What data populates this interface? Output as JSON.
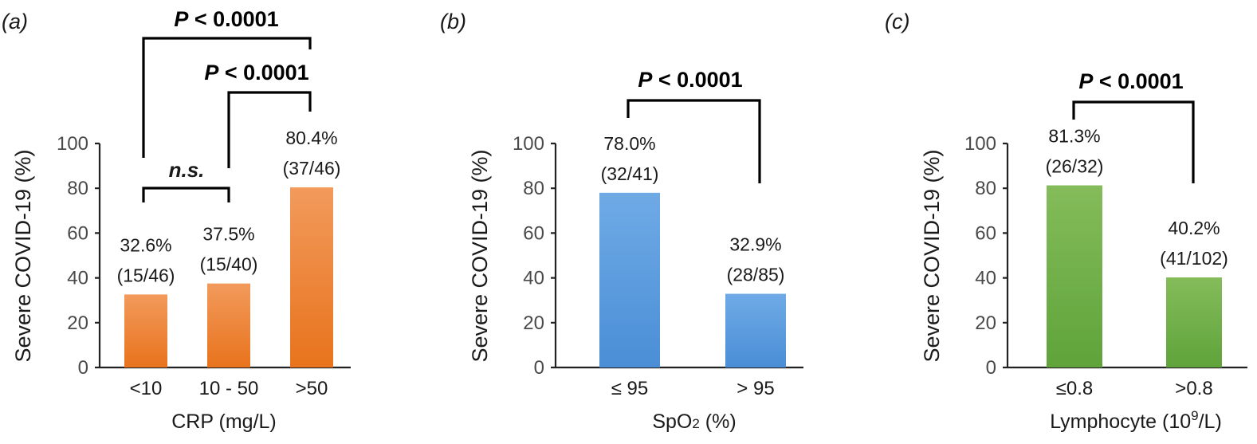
{
  "figure": {
    "panel_labels": [
      "(a)",
      "(b)",
      "(c)"
    ]
  },
  "colors": {
    "orange_top": "#F29A5C",
    "orange_bottom": "#E8731C",
    "blue_top": "#6FAAE6",
    "blue_bottom": "#4A8ED6",
    "green_top": "#84BC5A",
    "green_bottom": "#5FA33A"
  },
  "chart_data": [
    {
      "type": "bar",
      "panel": "(a)",
      "categories": [
        "<10",
        "10 - 50",
        ">50"
      ],
      "values": [
        32.6,
        37.5,
        80.4
      ],
      "value_labels": [
        "32.6%",
        "37.5%",
        "80.4%"
      ],
      "count_labels": [
        "(15/46)",
        "(15/40)",
        "(37/46)"
      ],
      "xlabel": "CRP (mg/L)",
      "ylabel": "Severe COVID-19 (%)",
      "ylim": [
        0,
        100
      ],
      "yticks": [
        "0",
        "20",
        "40",
        "60",
        "80",
        "100"
      ],
      "color": "orange",
      "annotations": [
        {
          "between": [
            0,
            2
          ],
          "label": "P < 0.0001",
          "label_p": "P",
          "label_rest": " < 0.0001"
        },
        {
          "between": [
            1,
            2
          ],
          "label": "P < 0.0001",
          "label_p": "P",
          "label_rest": " < 0.0001"
        },
        {
          "between": [
            0,
            1
          ],
          "label": "n.s."
        }
      ]
    },
    {
      "type": "bar",
      "panel": "(b)",
      "categories": [
        "≤ 95",
        "> 95"
      ],
      "values": [
        78.0,
        32.9
      ],
      "value_labels": [
        "78.0%",
        "32.9%"
      ],
      "count_labels": [
        "(32/41)",
        "(28/85)"
      ],
      "xlabel": "SpO2 (%)",
      "xlabel_main": "SpO",
      "xlabel_sub": "2",
      "xlabel_tail": " (%)",
      "ylabel": "Severe COVID-19 (%)",
      "ylim": [
        0,
        100
      ],
      "yticks": [
        "0",
        "20",
        "40",
        "60",
        "80",
        "100"
      ],
      "color": "blue",
      "annotations": [
        {
          "between": [
            0,
            1
          ],
          "label": "P < 0.0001",
          "label_p": "P",
          "label_rest": " < 0.0001"
        }
      ]
    },
    {
      "type": "bar",
      "panel": "(c)",
      "categories": [
        "≤0.8",
        ">0.8"
      ],
      "values": [
        81.3,
        40.2
      ],
      "value_labels": [
        "81.3%",
        "40.2%"
      ],
      "count_labels": [
        "(26/32)",
        "(41/102)"
      ],
      "xlabel": "Lymphocyte (10⁹/L)",
      "xlabel_main": "Lymphocyte (10",
      "xlabel_sup": "9",
      "xlabel_tail": "/L)",
      "ylabel": "Severe COVID-19 (%)",
      "ylim": [
        0,
        100
      ],
      "yticks": [
        "0",
        "20",
        "40",
        "60",
        "80",
        "100"
      ],
      "color": "green",
      "annotations": [
        {
          "between": [
            0,
            1
          ],
          "label": "P < 0.0001",
          "label_p": "P",
          "label_rest": " < 0.0001"
        }
      ]
    }
  ]
}
